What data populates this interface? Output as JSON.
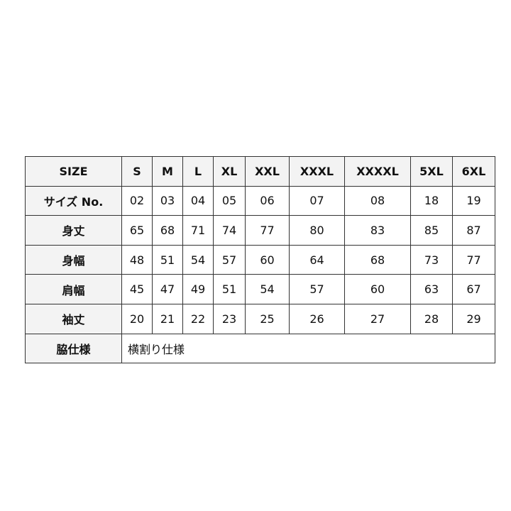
{
  "header": {
    "label": "SIZE",
    "sizes": [
      "S",
      "M",
      "L",
      "XL",
      "XXL",
      "XXXL",
      "XXXXL",
      "5XL",
      "6XL"
    ]
  },
  "rows": [
    {
      "label": "サイズ No.",
      "values": [
        "02",
        "03",
        "04",
        "05",
        "06",
        "07",
        "08",
        "18",
        "19"
      ]
    },
    {
      "label": "身丈",
      "values": [
        "65",
        "68",
        "71",
        "74",
        "77",
        "80",
        "83",
        "85",
        "87"
      ]
    },
    {
      "label": "身幅",
      "values": [
        "48",
        "51",
        "54",
        "57",
        "60",
        "64",
        "68",
        "73",
        "77"
      ]
    },
    {
      "label": "肩幅",
      "values": [
        "45",
        "47",
        "49",
        "51",
        "54",
        "57",
        "60",
        "63",
        "67"
      ]
    },
    {
      "label": "袖丈",
      "values": [
        "20",
        "21",
        "22",
        "23",
        "25",
        "26",
        "27",
        "28",
        "29"
      ]
    }
  ],
  "side": {
    "label": "脇仕様",
    "value": "横割り仕様"
  }
}
